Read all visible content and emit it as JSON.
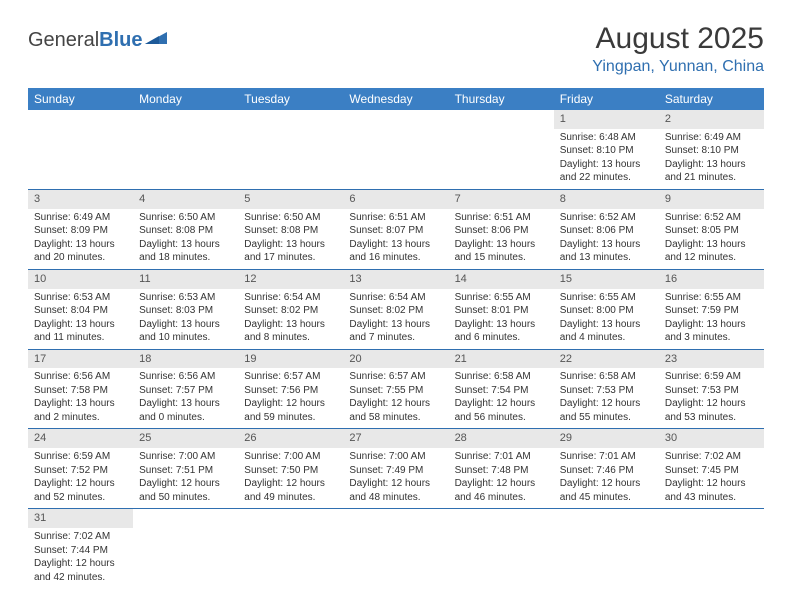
{
  "header": {
    "logo_general": "General",
    "logo_blue": "Blue",
    "month_title": "August 2025",
    "location": "Yingpan, Yunnan, China"
  },
  "colors": {
    "header_bg": "#3b7fc4",
    "accent": "#2f6fb0",
    "daynum_bg": "#e8e8e8",
    "text": "#333333",
    "bg": "#ffffff"
  },
  "weekdays": [
    "Sunday",
    "Monday",
    "Tuesday",
    "Wednesday",
    "Thursday",
    "Friday",
    "Saturday"
  ],
  "weeks": [
    [
      null,
      null,
      null,
      null,
      null,
      {
        "n": "1",
        "sr": "Sunrise: 6:48 AM",
        "ss": "Sunset: 8:10 PM",
        "dl": "Daylight: 13 hours and 22 minutes."
      },
      {
        "n": "2",
        "sr": "Sunrise: 6:49 AM",
        "ss": "Sunset: 8:10 PM",
        "dl": "Daylight: 13 hours and 21 minutes."
      }
    ],
    [
      {
        "n": "3",
        "sr": "Sunrise: 6:49 AM",
        "ss": "Sunset: 8:09 PM",
        "dl": "Daylight: 13 hours and 20 minutes."
      },
      {
        "n": "4",
        "sr": "Sunrise: 6:50 AM",
        "ss": "Sunset: 8:08 PM",
        "dl": "Daylight: 13 hours and 18 minutes."
      },
      {
        "n": "5",
        "sr": "Sunrise: 6:50 AM",
        "ss": "Sunset: 8:08 PM",
        "dl": "Daylight: 13 hours and 17 minutes."
      },
      {
        "n": "6",
        "sr": "Sunrise: 6:51 AM",
        "ss": "Sunset: 8:07 PM",
        "dl": "Daylight: 13 hours and 16 minutes."
      },
      {
        "n": "7",
        "sr": "Sunrise: 6:51 AM",
        "ss": "Sunset: 8:06 PM",
        "dl": "Daylight: 13 hours and 15 minutes."
      },
      {
        "n": "8",
        "sr": "Sunrise: 6:52 AM",
        "ss": "Sunset: 8:06 PM",
        "dl": "Daylight: 13 hours and 13 minutes."
      },
      {
        "n": "9",
        "sr": "Sunrise: 6:52 AM",
        "ss": "Sunset: 8:05 PM",
        "dl": "Daylight: 13 hours and 12 minutes."
      }
    ],
    [
      {
        "n": "10",
        "sr": "Sunrise: 6:53 AM",
        "ss": "Sunset: 8:04 PM",
        "dl": "Daylight: 13 hours and 11 minutes."
      },
      {
        "n": "11",
        "sr": "Sunrise: 6:53 AM",
        "ss": "Sunset: 8:03 PM",
        "dl": "Daylight: 13 hours and 10 minutes."
      },
      {
        "n": "12",
        "sr": "Sunrise: 6:54 AM",
        "ss": "Sunset: 8:02 PM",
        "dl": "Daylight: 13 hours and 8 minutes."
      },
      {
        "n": "13",
        "sr": "Sunrise: 6:54 AM",
        "ss": "Sunset: 8:02 PM",
        "dl": "Daylight: 13 hours and 7 minutes."
      },
      {
        "n": "14",
        "sr": "Sunrise: 6:55 AM",
        "ss": "Sunset: 8:01 PM",
        "dl": "Daylight: 13 hours and 6 minutes."
      },
      {
        "n": "15",
        "sr": "Sunrise: 6:55 AM",
        "ss": "Sunset: 8:00 PM",
        "dl": "Daylight: 13 hours and 4 minutes."
      },
      {
        "n": "16",
        "sr": "Sunrise: 6:55 AM",
        "ss": "Sunset: 7:59 PM",
        "dl": "Daylight: 13 hours and 3 minutes."
      }
    ],
    [
      {
        "n": "17",
        "sr": "Sunrise: 6:56 AM",
        "ss": "Sunset: 7:58 PM",
        "dl": "Daylight: 13 hours and 2 minutes."
      },
      {
        "n": "18",
        "sr": "Sunrise: 6:56 AM",
        "ss": "Sunset: 7:57 PM",
        "dl": "Daylight: 13 hours and 0 minutes."
      },
      {
        "n": "19",
        "sr": "Sunrise: 6:57 AM",
        "ss": "Sunset: 7:56 PM",
        "dl": "Daylight: 12 hours and 59 minutes."
      },
      {
        "n": "20",
        "sr": "Sunrise: 6:57 AM",
        "ss": "Sunset: 7:55 PM",
        "dl": "Daylight: 12 hours and 58 minutes."
      },
      {
        "n": "21",
        "sr": "Sunrise: 6:58 AM",
        "ss": "Sunset: 7:54 PM",
        "dl": "Daylight: 12 hours and 56 minutes."
      },
      {
        "n": "22",
        "sr": "Sunrise: 6:58 AM",
        "ss": "Sunset: 7:53 PM",
        "dl": "Daylight: 12 hours and 55 minutes."
      },
      {
        "n": "23",
        "sr": "Sunrise: 6:59 AM",
        "ss": "Sunset: 7:53 PM",
        "dl": "Daylight: 12 hours and 53 minutes."
      }
    ],
    [
      {
        "n": "24",
        "sr": "Sunrise: 6:59 AM",
        "ss": "Sunset: 7:52 PM",
        "dl": "Daylight: 12 hours and 52 minutes."
      },
      {
        "n": "25",
        "sr": "Sunrise: 7:00 AM",
        "ss": "Sunset: 7:51 PM",
        "dl": "Daylight: 12 hours and 50 minutes."
      },
      {
        "n": "26",
        "sr": "Sunrise: 7:00 AM",
        "ss": "Sunset: 7:50 PM",
        "dl": "Daylight: 12 hours and 49 minutes."
      },
      {
        "n": "27",
        "sr": "Sunrise: 7:00 AM",
        "ss": "Sunset: 7:49 PM",
        "dl": "Daylight: 12 hours and 48 minutes."
      },
      {
        "n": "28",
        "sr": "Sunrise: 7:01 AM",
        "ss": "Sunset: 7:48 PM",
        "dl": "Daylight: 12 hours and 46 minutes."
      },
      {
        "n": "29",
        "sr": "Sunrise: 7:01 AM",
        "ss": "Sunset: 7:46 PM",
        "dl": "Daylight: 12 hours and 45 minutes."
      },
      {
        "n": "30",
        "sr": "Sunrise: 7:02 AM",
        "ss": "Sunset: 7:45 PM",
        "dl": "Daylight: 12 hours and 43 minutes."
      }
    ],
    [
      {
        "n": "31",
        "sr": "Sunrise: 7:02 AM",
        "ss": "Sunset: 7:44 PM",
        "dl": "Daylight: 12 hours and 42 minutes."
      },
      null,
      null,
      null,
      null,
      null,
      null
    ]
  ]
}
